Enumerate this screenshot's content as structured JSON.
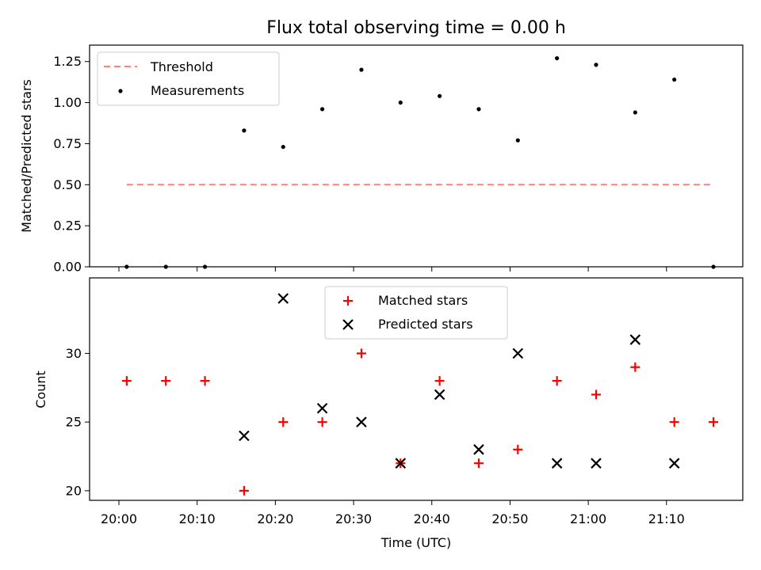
{
  "chart_data": [
    {
      "type": "scatter",
      "title": "Flux total observing time = 0.00 h",
      "ylabel": "Matched/Predicted stars",
      "ylim": [
        0,
        1.35
      ],
      "yticks": [
        "0.00",
        "0.25",
        "0.50",
        "0.75",
        "1.00",
        "1.25"
      ],
      "legend_position": "top-left",
      "series": [
        {
          "name": "Threshold",
          "kind": "dashed-line",
          "color": "#ff7f7f",
          "x": [
            "20:01",
            "21:16"
          ],
          "y": [
            0.5,
            0.5
          ]
        },
        {
          "name": "Measurements",
          "kind": "dots",
          "color": "#000000",
          "x": [
            "20:01",
            "20:06",
            "20:11",
            "20:16",
            "20:21",
            "20:26",
            "20:31",
            "20:36",
            "20:41",
            "20:46",
            "20:51",
            "20:56",
            "21:01",
            "21:06",
            "21:11",
            "21:16"
          ],
          "y": [
            0.0,
            0.0,
            0.0,
            0.83,
            0.73,
            0.96,
            1.2,
            1.0,
            1.04,
            0.96,
            0.77,
            1.27,
            1.23,
            0.94,
            1.14,
            0.0
          ]
        }
      ]
    },
    {
      "type": "scatter",
      "xlabel": "Time (UTC)",
      "ylabel": "Count",
      "ylim": [
        19.3,
        35.5
      ],
      "yticks": [
        "20",
        "25",
        "30"
      ],
      "xticks": [
        "20:00",
        "20:10",
        "20:20",
        "20:30",
        "20:40",
        "20:50",
        "21:00",
        "21:10"
      ],
      "legend_position": "top-center",
      "series": [
        {
          "name": "Matched stars",
          "marker": "plus",
          "color": "#ff0000",
          "x": [
            "20:01",
            "20:06",
            "20:11",
            "20:16",
            "20:21",
            "20:26",
            "20:31",
            "20:36",
            "20:41",
            "20:46",
            "20:51",
            "20:56",
            "21:01",
            "21:06",
            "21:11",
            "21:16"
          ],
          "y": [
            28,
            28,
            28,
            20,
            25,
            25,
            30,
            22,
            28,
            22,
            23,
            28,
            27,
            29,
            25,
            25
          ]
        },
        {
          "name": "Predicted stars",
          "marker": "x",
          "color": "#000000",
          "x": [
            "20:16",
            "20:21",
            "20:26",
            "20:31",
            "20:36",
            "20:41",
            "20:46",
            "20:51",
            "20:56",
            "21:01",
            "21:06",
            "21:11"
          ],
          "y": [
            24,
            34,
            26,
            25,
            22,
            27,
            23,
            30,
            22,
            22,
            31,
            22
          ]
        }
      ]
    }
  ]
}
